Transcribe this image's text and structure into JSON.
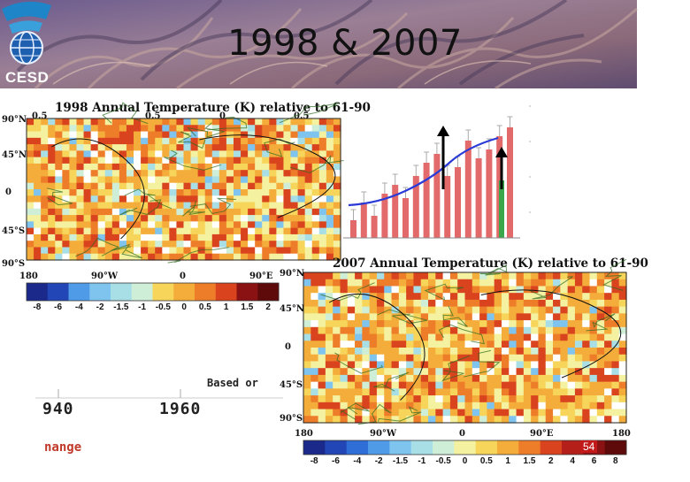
{
  "slide": {
    "title": "1998 & 2007",
    "logo_label": "CESD",
    "page_number": "54"
  },
  "map_1998": {
    "title": "1998 Annual Temperature (K) relative to 61-90",
    "lat_labels": [
      "90°N",
      "45°N",
      "0",
      "45°S",
      "90°S"
    ],
    "lon_labels": [
      "180",
      "90°W",
      "0",
      "90°E"
    ],
    "colorbar_labels": [
      "-8",
      "-6",
      "-4",
      "-2",
      "-1.5",
      "-1",
      "-0.5",
      "0",
      "0.5",
      "1",
      "1.5",
      "2"
    ],
    "partial_top_labels": [
      "0.5",
      "0.5",
      "0",
      "0.5"
    ]
  },
  "map_2007": {
    "title": "2007 Annual Temperature (K) relative to 61-90",
    "lat_labels": [
      "90°N",
      "45°N",
      "0",
      "45°S",
      "90°S"
    ],
    "lon_labels": [
      "180",
      "90°W",
      "0",
      "90°E",
      "180"
    ],
    "colorbar_labels": [
      "-8",
      "-6",
      "-4",
      "-2",
      "-1.5",
      "-1",
      "-0.5",
      "0",
      "0.5",
      "1",
      "1.5",
      "2",
      "4",
      "6",
      "8"
    ]
  },
  "background_chart": {
    "years": [
      "940",
      "1960"
    ],
    "based_on_text": "Based or",
    "change_text": "nange"
  },
  "colors": {
    "colorbar": [
      "#1b2a8a",
      "#2246b5",
      "#2f6ed6",
      "#4f9be8",
      "#7fc3ef",
      "#a8dfe7",
      "#cfeed8",
      "#f4f1a0",
      "#f6d55a",
      "#f4ad3a",
      "#ee7d2a",
      "#d9441f",
      "#b51f1a",
      "#8a1212",
      "#5e0a0a"
    ],
    "bar_red": "#e26a6a",
    "trend_blue": "#2a3ad6"
  }
}
